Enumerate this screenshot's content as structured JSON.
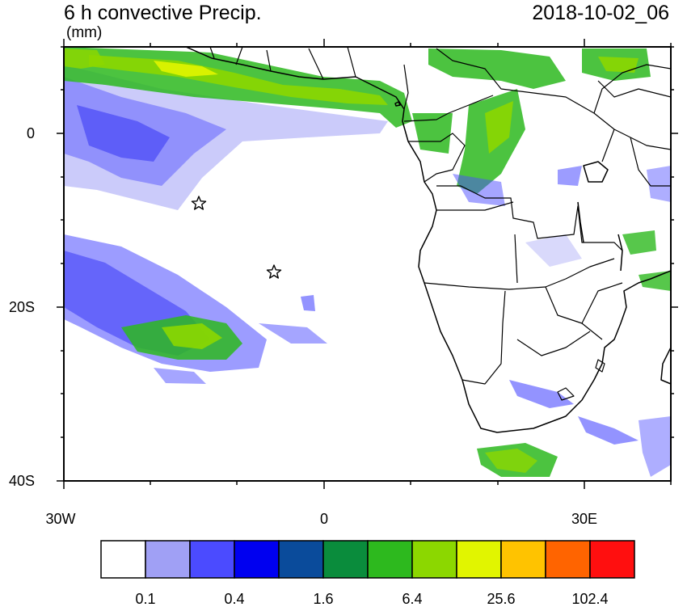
{
  "title_left": "6 h convective Precip.",
  "title_right": "2018-10-02_06",
  "units": "(mm)",
  "y_ticks": [
    "0",
    "20S",
    "40S"
  ],
  "x_ticks": [
    "30W",
    "0",
    "30E"
  ],
  "colorbar": {
    "colors": [
      "#ffffff",
      "#a0a0f5",
      "#4b4bff",
      "#0000f0",
      "#0a4b9b",
      "#0a8c3c",
      "#2db91e",
      "#8cd700",
      "#e1f500",
      "#ffc300",
      "#ff6400",
      "#ff0f0f"
    ],
    "labels": [
      "0.1",
      "0.4",
      "1.6",
      "6.4",
      "25.6",
      "102.4"
    ]
  },
  "map_features": [
    "convective-precipitation-field",
    "coastlines",
    "country-borders",
    "station-markers"
  ]
}
